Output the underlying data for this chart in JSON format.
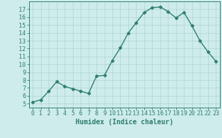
{
  "x": [
    0,
    1,
    2,
    3,
    4,
    5,
    6,
    7,
    8,
    9,
    10,
    11,
    12,
    13,
    14,
    15,
    16,
    17,
    18,
    19,
    20,
    21,
    22,
    23
  ],
  "y": [
    5.2,
    5.5,
    6.6,
    7.8,
    7.2,
    6.9,
    6.6,
    6.3,
    8.5,
    8.6,
    10.5,
    12.1,
    14.0,
    15.3,
    16.6,
    17.2,
    17.3,
    16.7,
    15.9,
    16.6,
    14.9,
    13.0,
    11.6,
    10.4
  ],
  "line_color": "#2e7d6e",
  "marker": "D",
  "markersize": 2.5,
  "linewidth": 1.0,
  "bg_color": "#cdecea",
  "grid_color": "#b0d4d0",
  "xlabel": "Humidex (Indice chaleur)",
  "xlim": [
    -0.5,
    23.5
  ],
  "ylim": [
    4.5,
    18.0
  ],
  "yticks": [
    5,
    6,
    7,
    8,
    9,
    10,
    11,
    12,
    13,
    14,
    15,
    16,
    17
  ],
  "xticks": [
    0,
    1,
    2,
    3,
    4,
    5,
    6,
    7,
    8,
    9,
    10,
    11,
    12,
    13,
    14,
    15,
    16,
    17,
    18,
    19,
    20,
    21,
    22,
    23
  ],
  "xlabel_fontsize": 7,
  "tick_fontsize": 6,
  "tick_color": "#2e7d6e",
  "axis_color": "#2e7d6e"
}
